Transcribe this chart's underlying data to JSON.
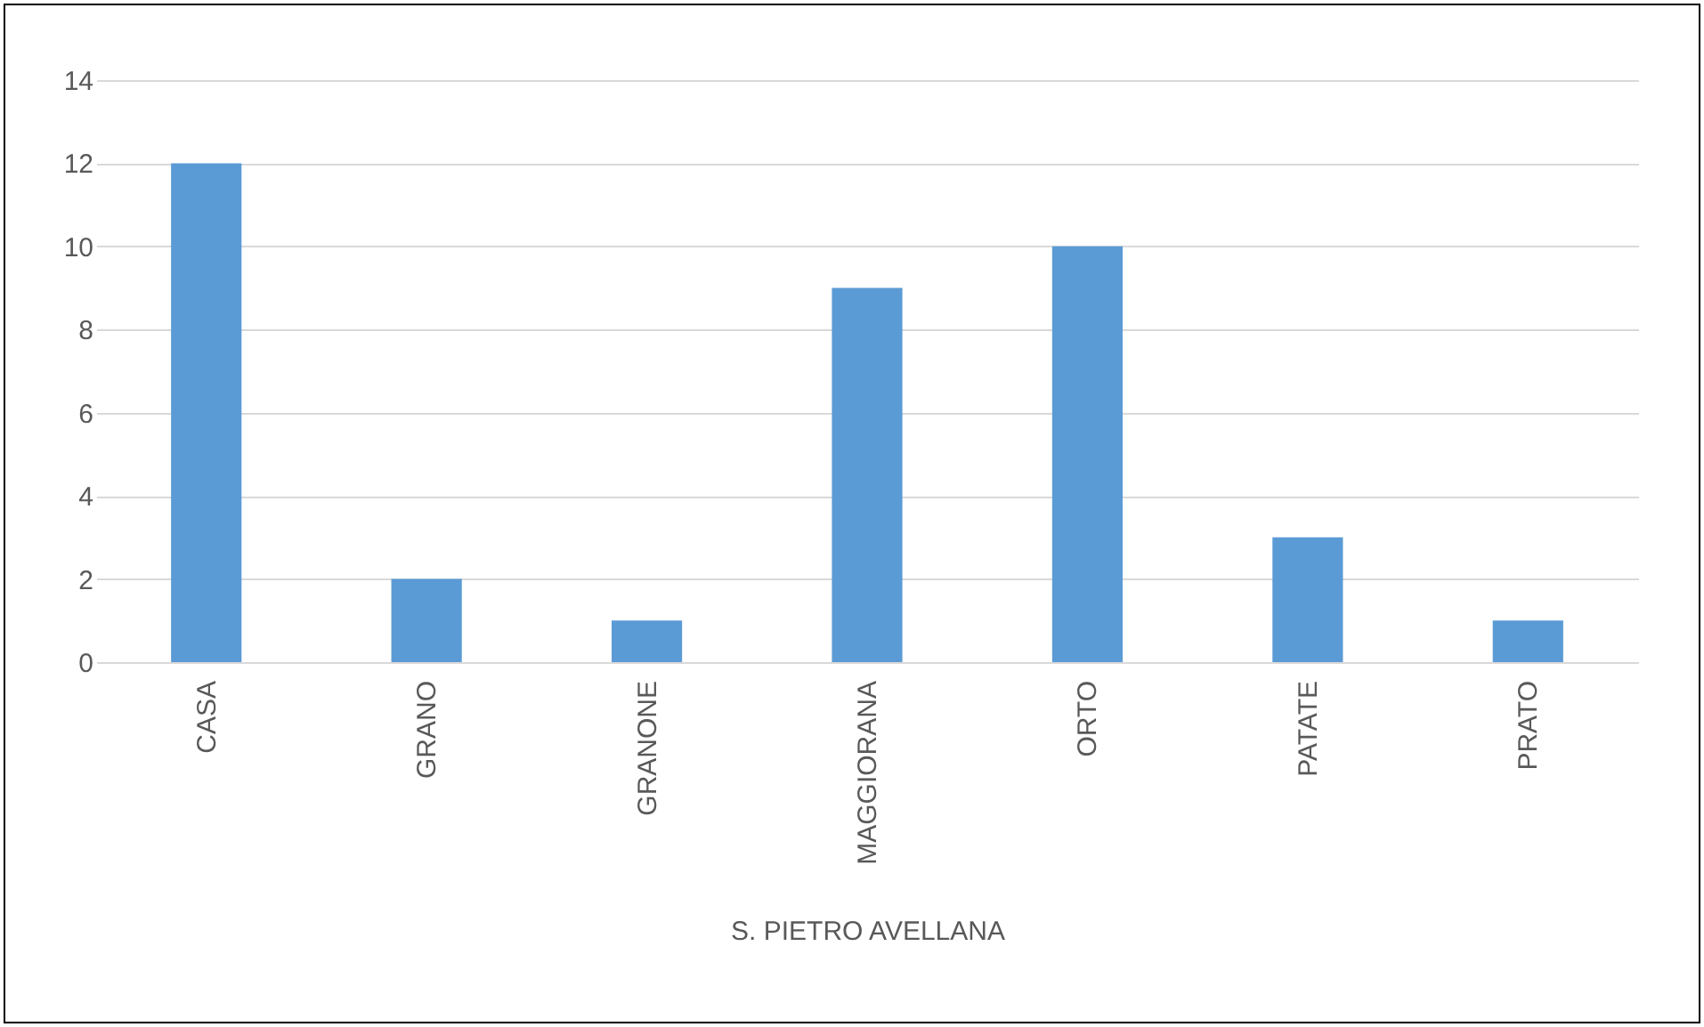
{
  "chart_data": {
    "type": "bar",
    "xlabel": "S. PIETRO AVELLANA",
    "categories": [
      "CASA",
      "GRANO",
      "GRANONE",
      "MAGGIORANA",
      "ORTO",
      "PATATE",
      "PRATO"
    ],
    "values": [
      12,
      2,
      1,
      9,
      10,
      3,
      1
    ],
    "color": "#5b9bd5",
    "ylim": [
      0,
      14
    ],
    "yticks": [
      0,
      2,
      4,
      6,
      8,
      10,
      12,
      14
    ],
    "grid": "y"
  }
}
